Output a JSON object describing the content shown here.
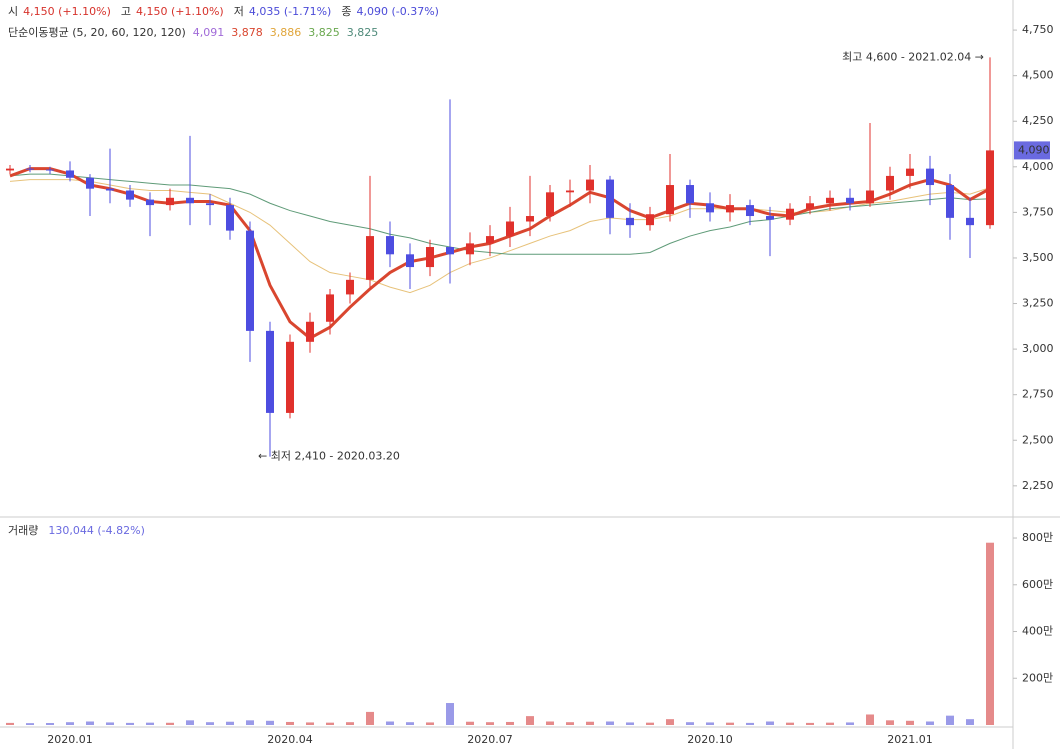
{
  "chart_data": [
    {
      "type": "candlestick",
      "summary": [
        {
          "label": "시",
          "value": "4,150 (+1.10%)",
          "color": "#d6322b"
        },
        {
          "label": "고",
          "value": "4,150 (+1.10%)",
          "color": "#d6322b"
        },
        {
          "label": "저",
          "value": "4,035 (-1.71%)",
          "color": "#4b4bd8"
        },
        {
          "label": "종",
          "value": "4,090 (-0.37%)",
          "color": "#4b4bd8"
        }
      ],
      "ma_label": "단순이동평균 (5, 20, 60, 120, 120)",
      "ma_values": [
        {
          "label": "4,091",
          "color": "#a06ad8"
        },
        {
          "label": "3,878",
          "color": "#d9462f"
        },
        {
          "label": "3,886",
          "color": "#e0a53a"
        },
        {
          "label": "3,825",
          "color": "#6aa84f"
        },
        {
          "label": "3,825",
          "color": "#4f8a7a"
        }
      ],
      "categories": [
        null,
        null,
        null,
        "2020.01",
        null,
        null,
        null,
        null,
        null,
        null,
        null,
        null,
        null,
        null,
        "2020.04",
        null,
        null,
        null,
        null,
        null,
        null,
        null,
        null,
        null,
        "2020.07",
        null,
        null,
        null,
        null,
        null,
        null,
        null,
        null,
        null,
        null,
        "2020.10",
        null,
        null,
        null,
        null,
        null,
        null,
        null,
        null,
        null,
        "2021.01",
        null,
        null,
        null,
        null
      ],
      "up_color": "#e0312c",
      "down_color": "#4d4de0",
      "ohlc": [
        [
          3980,
          4010,
          3960,
          3990
        ],
        [
          3990,
          4010,
          3970,
          3985
        ],
        [
          3985,
          4000,
          3960,
          3980
        ],
        [
          3980,
          4030,
          3920,
          3940
        ],
        [
          3940,
          3960,
          3730,
          3880
        ],
        [
          3880,
          4100,
          3800,
          3870
        ],
        [
          3870,
          3900,
          3780,
          3820
        ],
        [
          3820,
          3860,
          3620,
          3790
        ],
        [
          3790,
          3880,
          3760,
          3830
        ],
        [
          3830,
          4170,
          3680,
          3800
        ],
        [
          3800,
          3850,
          3680,
          3790
        ],
        [
          3790,
          3830,
          3600,
          3650
        ],
        [
          3650,
          3700,
          2930,
          3100
        ],
        [
          3100,
          3150,
          2410,
          2650
        ],
        [
          2650,
          3080,
          2620,
          3040
        ],
        [
          3040,
          3200,
          2980,
          3150
        ],
        [
          3150,
          3330,
          3080,
          3300
        ],
        [
          3300,
          3420,
          3250,
          3380
        ],
        [
          3380,
          3950,
          3330,
          3620
        ],
        [
          3620,
          3700,
          3450,
          3520
        ],
        [
          3520,
          3580,
          3330,
          3450
        ],
        [
          3450,
          3600,
          3400,
          3560
        ],
        [
          3560,
          4370,
          3360,
          3520
        ],
        [
          3520,
          3640,
          3460,
          3580
        ],
        [
          3580,
          3680,
          3510,
          3620
        ],
        [
          3620,
          3780,
          3560,
          3700
        ],
        [
          3700,
          3950,
          3620,
          3730
        ],
        [
          3730,
          3900,
          3700,
          3860
        ],
        [
          3860,
          3930,
          3780,
          3870
        ],
        [
          3870,
          4010,
          3800,
          3930
        ],
        [
          3930,
          3950,
          3630,
          3720
        ],
        [
          3720,
          3800,
          3610,
          3680
        ],
        [
          3680,
          3780,
          3650,
          3740
        ],
        [
          3740,
          4070,
          3700,
          3900
        ],
        [
          3900,
          3930,
          3720,
          3800
        ],
        [
          3800,
          3860,
          3700,
          3750
        ],
        [
          3750,
          3850,
          3700,
          3790
        ],
        [
          3790,
          3820,
          3680,
          3730
        ],
        [
          3730,
          3780,
          3510,
          3710
        ],
        [
          3710,
          3800,
          3680,
          3770
        ],
        [
          3770,
          3840,
          3740,
          3800
        ],
        [
          3800,
          3870,
          3760,
          3830
        ],
        [
          3830,
          3880,
          3760,
          3800
        ],
        [
          3800,
          4240,
          3780,
          3870
        ],
        [
          3870,
          4000,
          3820,
          3950
        ],
        [
          3950,
          4070,
          3880,
          3990
        ],
        [
          3990,
          4060,
          3790,
          3900
        ],
        [
          3900,
          3960,
          3600,
          3720
        ],
        [
          3720,
          3830,
          3500,
          3680
        ],
        [
          3680,
          4600,
          3660,
          4090
        ]
      ],
      "series": [
        {
          "color": "#e7c27a",
          "width": 1,
          "values": [
            3920,
            3930,
            3930,
            3930,
            3920,
            3900,
            3880,
            3870,
            3870,
            3860,
            3850,
            3800,
            3750,
            3680,
            3580,
            3480,
            3420,
            3400,
            3380,
            3340,
            3310,
            3350,
            3420,
            3470,
            3500,
            3540,
            3580,
            3620,
            3650,
            3700,
            3720,
            3710,
            3710,
            3730,
            3770,
            3770,
            3770,
            3770,
            3760,
            3750,
            3750,
            3760,
            3780,
            3800,
            3810,
            3830,
            3850,
            3860,
            3850,
            3886
          ]
        },
        {
          "color": "#5f9b78",
          "width": 1,
          "values": [
            3950,
            3960,
            3960,
            3950,
            3940,
            3930,
            3920,
            3910,
            3900,
            3900,
            3890,
            3880,
            3850,
            3800,
            3760,
            3730,
            3700,
            3680,
            3660,
            3630,
            3610,
            3580,
            3560,
            3540,
            3530,
            3520,
            3520,
            3520,
            3520,
            3520,
            3520,
            3520,
            3530,
            3580,
            3620,
            3650,
            3670,
            3700,
            3710,
            3730,
            3750,
            3770,
            3780,
            3790,
            3800,
            3810,
            3820,
            3830,
            3820,
            3825
          ]
        },
        {
          "color": "#d9462f",
          "width": 3,
          "values": [
            3950,
            3990,
            3990,
            3960,
            3900,
            3880,
            3850,
            3810,
            3800,
            3810,
            3810,
            3790,
            3650,
            3350,
            3150,
            3060,
            3120,
            3230,
            3330,
            3420,
            3480,
            3500,
            3530,
            3560,
            3580,
            3620,
            3660,
            3730,
            3790,
            3860,
            3830,
            3760,
            3720,
            3760,
            3800,
            3790,
            3770,
            3770,
            3740,
            3730,
            3770,
            3790,
            3800,
            3810,
            3850,
            3900,
            3930,
            3900,
            3820,
            3880
          ]
        }
      ],
      "ylim": [
        2090,
        4915
      ],
      "yticks": [
        {
          "value": 2250,
          "label": "2,250"
        },
        {
          "value": 2500,
          "label": "2,500"
        },
        {
          "value": 2750,
          "label": "2,750"
        },
        {
          "value": 3000,
          "label": "3,000"
        },
        {
          "value": 3250,
          "label": "3,250"
        },
        {
          "value": 3500,
          "label": "3,500"
        },
        {
          "value": 3750,
          "label": "3,750"
        },
        {
          "value": 4000,
          "label": "4,000"
        },
        {
          "value": 4250,
          "label": "4,250"
        },
        {
          "value": 4500,
          "label": "4,500"
        },
        {
          "value": 4750,
          "label": "4,750"
        }
      ],
      "last_label": "4,090",
      "high_annotation": "최고 4,600 - 2021.02.04 →",
      "low_annotation": "← 최저 2,410 - 2020.03.20"
    },
    {
      "type": "bar",
      "title": "거래량",
      "subtitle": "130,044 (-4.82%)",
      "values": [
        90000,
        80000,
        85000,
        120000,
        150000,
        110000,
        90000,
        100000,
        95000,
        200000,
        120000,
        140000,
        200000,
        180000,
        130000,
        110000,
        100000,
        120000,
        560000,
        150000,
        120000,
        110000,
        940000,
        140000,
        120000,
        130000,
        380000,
        150000,
        120000,
        140000,
        150000,
        110000,
        100000,
        250000,
        120000,
        110000,
        100000,
        90000,
        150000,
        100000,
        90000,
        100000,
        110000,
        450000,
        200000,
        180000,
        150000,
        400000,
        250000,
        7800000
      ],
      "ylim": [
        0,
        8900000
      ],
      "yticks": [
        {
          "value": 2000000,
          "label": "200만"
        },
        {
          "value": 4000000,
          "label": "400만"
        },
        {
          "value": 6000000,
          "label": "600만"
        },
        {
          "value": 8000000,
          "label": "800만"
        }
      ]
    }
  ]
}
